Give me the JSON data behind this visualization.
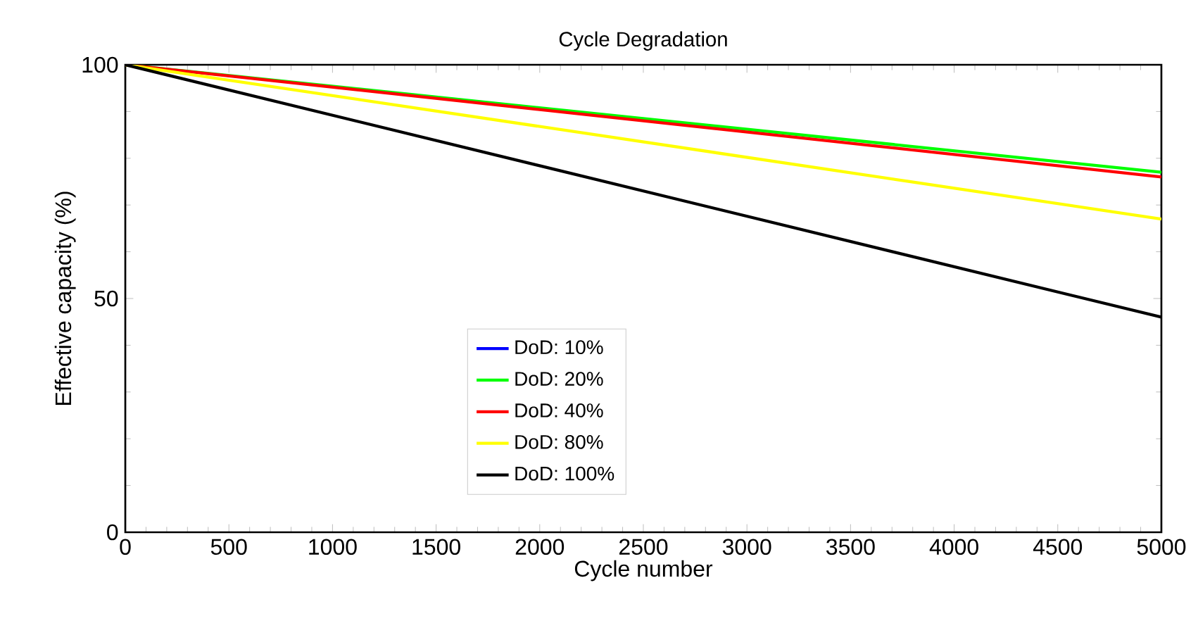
{
  "chart_data": {
    "type": "line",
    "title": "Cycle Degradation",
    "xlabel": "Cycle number",
    "ylabel": "Effective capacity (%)",
    "x": [
      0,
      5000
    ],
    "series": [
      {
        "name": "DoD: 10%",
        "color": "#0000ff",
        "values": [
          null,
          null
        ]
      },
      {
        "name": "DoD: 20%",
        "color": "#00ff00",
        "values": [
          100,
          77
        ]
      },
      {
        "name": "DoD: 40%",
        "color": "#ff0000",
        "values": [
          100,
          76
        ]
      },
      {
        "name": "DoD: 80%",
        "color": "#ffff00",
        "values": [
          100,
          67
        ]
      },
      {
        "name": "DoD: 100%",
        "color": "#000000",
        "values": [
          100,
          46
        ]
      }
    ],
    "xlim": [
      0,
      5000
    ],
    "ylim": [
      0,
      100
    ],
    "xticks": [
      0,
      500,
      1000,
      1500,
      2000,
      2500,
      3000,
      3500,
      4000,
      4500,
      5000
    ],
    "yticks": [
      0,
      50,
      100
    ],
    "grid": false,
    "legend": "left",
    "marker": "none",
    "line_style": "solid"
  }
}
